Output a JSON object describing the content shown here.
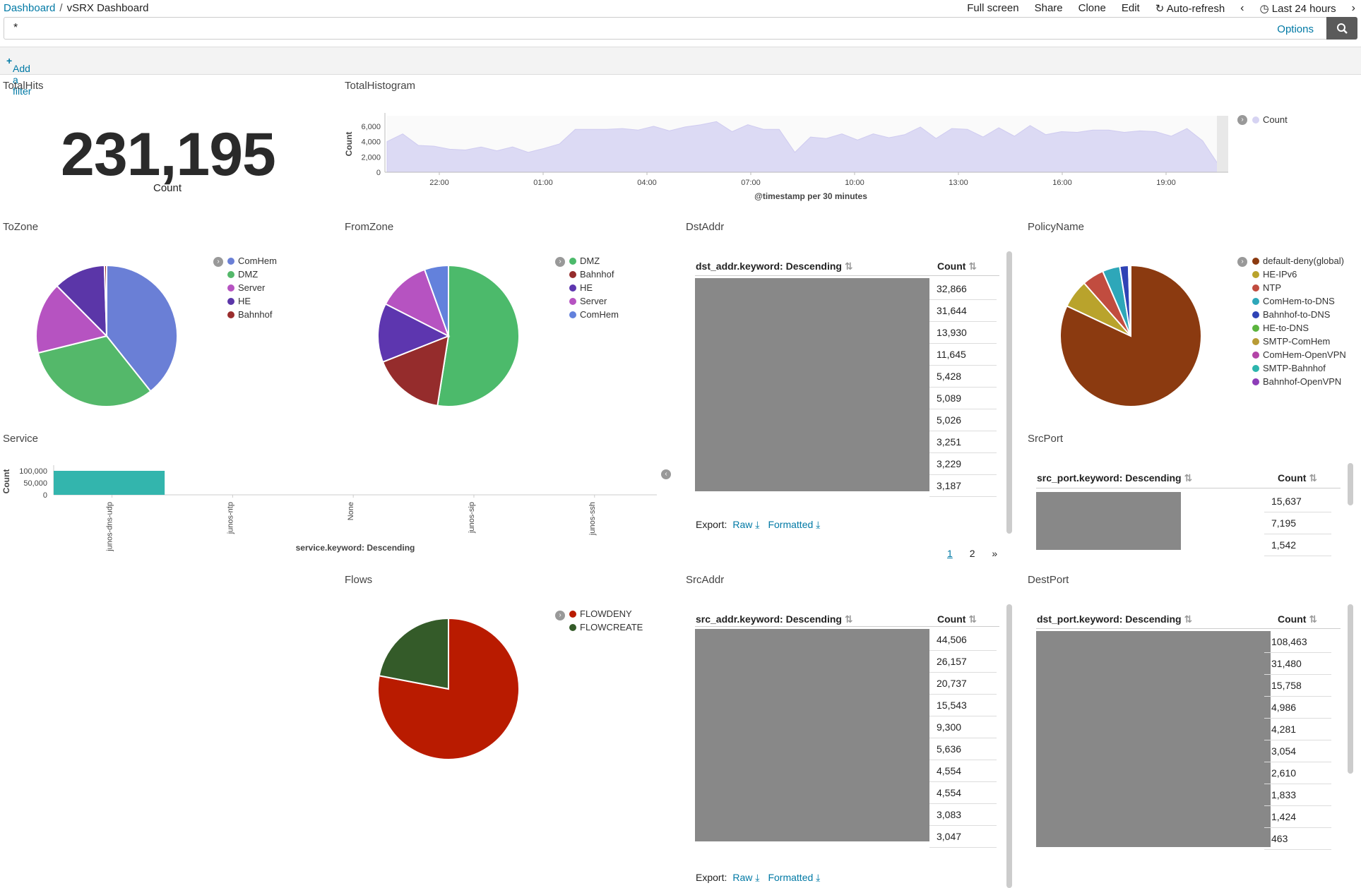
{
  "breadcrumb": {
    "root": "Dashboard",
    "separator": "/",
    "current": "vSRX Dashboard"
  },
  "topnav": {
    "fullscreen": "Full screen",
    "share": "Share",
    "clone": "Clone",
    "edit": "Edit",
    "autorefresh": "Auto-refresh",
    "timerange": "Last 24 hours"
  },
  "query": {
    "value": "*",
    "options": "Options"
  },
  "filter": {
    "add": "Add a filter"
  },
  "panels": {
    "totalhits": {
      "title": "TotalHits",
      "value": "231,195",
      "label": "Count"
    },
    "histogram": {
      "title": "TotalHistogram",
      "ylabel": "Count",
      "xlabel": "@timestamp per 30 minutes",
      "legend": "Count"
    },
    "tozone": {
      "title": "ToZone"
    },
    "fromzone": {
      "title": "FromZone"
    },
    "dstaddr": {
      "title": "DstAddr",
      "col1": "dst_addr.keyword: Descending",
      "col2": "Count",
      "counts": [
        "32,866",
        "31,644",
        "13,930",
        "11,645",
        "5,428",
        "5,089",
        "5,026",
        "3,251",
        "3,229",
        "3,187"
      ],
      "export": "Export:",
      "raw": "Raw",
      "formatted": "Formatted",
      "pages": [
        "1",
        "2",
        "»"
      ]
    },
    "policyname": {
      "title": "PolicyName"
    },
    "service": {
      "title": "Service",
      "ylabel": "Count",
      "xlabel": "service.keyword: Descending"
    },
    "srcport": {
      "title": "SrcPort",
      "col1": "src_port.keyword: Descending",
      "col2": "Count",
      "counts": [
        "15,637",
        "7,195",
        "1,542"
      ]
    },
    "flows": {
      "title": "Flows"
    },
    "srcaddr": {
      "title": "SrcAddr",
      "col1": "src_addr.keyword: Descending",
      "col2": "Count",
      "counts": [
        "44,506",
        "26,157",
        "20,737",
        "15,543",
        "9,300",
        "5,636",
        "4,554",
        "4,554",
        "3,083",
        "3,047"
      ],
      "export": "Export:",
      "raw": "Raw",
      "formatted": "Formatted"
    },
    "dstport": {
      "title": "DestPort",
      "col1": "dst_port.keyword: Descending",
      "col2": "Count",
      "counts": [
        "108,463",
        "31,480",
        "15,758",
        "4,986",
        "4,281",
        "3,054",
        "2,610",
        "1,833",
        "1,424",
        "463"
      ]
    }
  },
  "chart_data": [
    {
      "type": "area",
      "name": "TotalHistogram",
      "x_ticks": [
        "22:00",
        "01:00",
        "04:00",
        "07:00",
        "10:00",
        "13:00",
        "16:00",
        "19:00"
      ],
      "y_ticks": [
        "0",
        "2,000",
        "4,000",
        "6,000"
      ],
      "ylim": [
        0,
        7000
      ],
      "values": [
        4000,
        5000,
        3500,
        3400,
        3000,
        2900,
        3300,
        2800,
        3300,
        2600,
        3100,
        3700,
        5600,
        5600,
        5600,
        5700,
        5500,
        6000,
        5400,
        5900,
        6200,
        6600,
        5300,
        6200,
        5600,
        5600,
        2600,
        4600,
        4400,
        5000,
        4200,
        5000,
        4500,
        4900,
        5900,
        4400,
        5700,
        5600,
        4600,
        5800,
        4700,
        6100,
        4900,
        5300,
        5200,
        5500,
        5500,
        5200,
        5400,
        5300,
        4700,
        5700,
        4100,
        1000
      ],
      "legend": [
        "Count"
      ]
    },
    {
      "type": "pie",
      "name": "ToZone",
      "labels": [
        "ComHem",
        "DMZ",
        "Server",
        "HE",
        "Bahnhof"
      ],
      "values": [
        39.5,
        32,
        16.5,
        12,
        0.5
      ],
      "colors": [
        "#6a7fd6",
        "#54b86a",
        "#b653c1",
        "#5b36a8",
        "#9a2d2d"
      ]
    },
    {
      "type": "pie",
      "name": "FromZone",
      "labels": [
        "DMZ",
        "Bahnhof",
        "HE",
        "Server",
        "ComHem"
      ],
      "values": [
        52.5,
        16.5,
        13.5,
        12,
        5.5
      ],
      "colors": [
        "#4cba6b",
        "#952c2c",
        "#5d36af",
        "#b653c1",
        "#6381dc"
      ]
    },
    {
      "type": "pie",
      "name": "PolicyName",
      "labels": [
        "default-deny(global)",
        "HE-IPv6",
        "NTP",
        "ComHem-to-DNS",
        "Bahnhof-to-DNS",
        "HE-to-DNS",
        "SMTP-ComHem",
        "ComHem-OpenVPN",
        "SMTP-Bahnhof",
        "Bahnhof-OpenVPN"
      ],
      "values": [
        82,
        6.5,
        5,
        4,
        2,
        0.1,
        0.1,
        0.1,
        0.1,
        0.1
      ],
      "colors": [
        "#8b3a10",
        "#b9a32c",
        "#c14c3f",
        "#2ea7b9",
        "#2f43b5",
        "#5bb43e",
        "#b89b35",
        "#b344a7",
        "#2cb5ad",
        "#8d3db8"
      ]
    },
    {
      "type": "bar",
      "name": "Service",
      "categories": [
        "junos-dns-udp",
        "junos-ntp",
        "None",
        "junos-sip",
        "junos-ssh"
      ],
      "values": [
        100000,
        0,
        0,
        0,
        0
      ],
      "y_ticks": [
        "0",
        "50,000",
        "100,000"
      ],
      "ylim": [
        0,
        100000
      ],
      "color": "#33b5ad"
    },
    {
      "type": "pie",
      "name": "Flows",
      "labels": [
        "FLOWDENY",
        "FLOWCREATE"
      ],
      "values": [
        78,
        22
      ],
      "colors": [
        "#b91b00",
        "#345b29"
      ]
    }
  ]
}
